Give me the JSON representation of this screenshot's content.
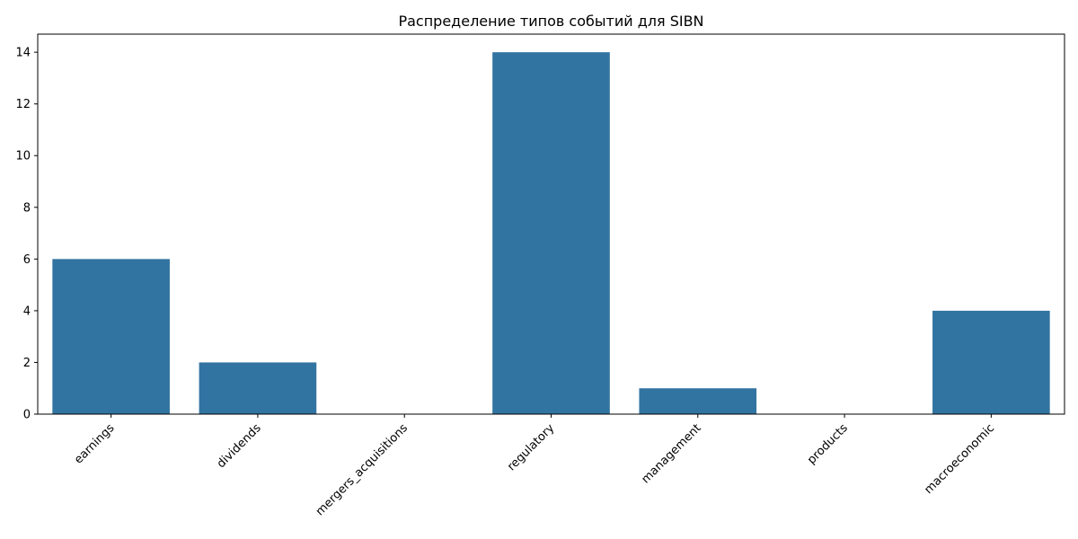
{
  "chart_data": {
    "type": "bar",
    "title": "Распределение типов событий для SIBN",
    "xlabel": "",
    "ylabel": "",
    "categories": [
      "earnings",
      "dividends",
      "mergers_acquisitions",
      "regulatory",
      "management",
      "products",
      "macroeconomic"
    ],
    "values": [
      6,
      2,
      0,
      14,
      1,
      0,
      4
    ],
    "ylim": [
      0,
      14.7
    ],
    "yticks": [
      0,
      2,
      4,
      6,
      8,
      10,
      12,
      14
    ],
    "bar_color": "#3274a1",
    "grid": false,
    "legend": "none",
    "xtick_rotation_deg": 45
  }
}
